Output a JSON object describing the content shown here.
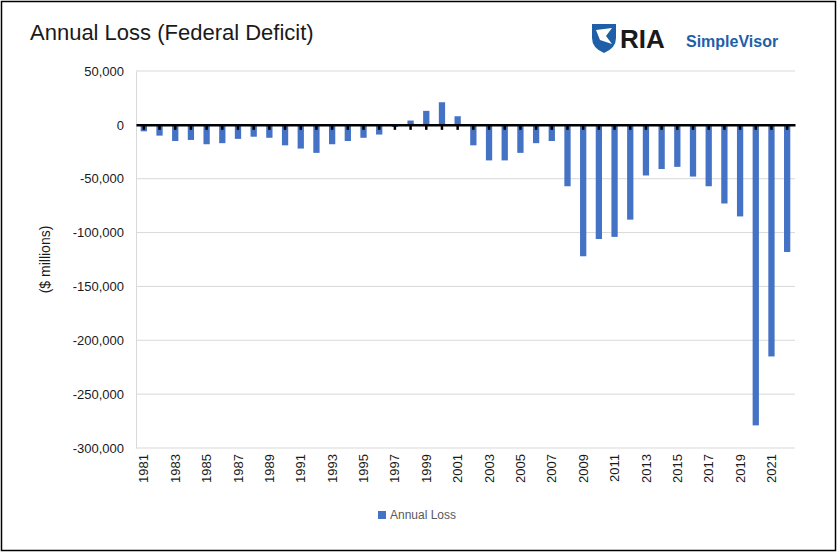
{
  "chart_data": {
    "type": "bar",
    "title": "Annual Loss (Federal Deficit)",
    "y_label": "($ millions)",
    "annotations": [
      "RIA",
      "SimpleVisor"
    ],
    "categories": [
      "1981",
      null,
      "1983",
      null,
      "1985",
      null,
      "1987",
      null,
      "1989",
      null,
      "1991",
      null,
      "1993",
      null,
      "1995",
      null,
      "1997",
      null,
      "1999",
      null,
      "2001",
      null,
      "2003",
      null,
      "2005",
      null,
      "2007",
      null,
      "2009",
      null,
      "2011",
      null,
      "2013",
      null,
      "2015",
      null,
      "2017",
      null,
      "2019",
      null,
      "2021",
      null
    ],
    "series": [
      {
        "name": "Annual Loss",
        "color": "#4472c4",
        "values": [
          -6000,
          -10000,
          -15000,
          -14000,
          -18000,
          -17000,
          -13000,
          -11000,
          -12000,
          -19000,
          -22000,
          -26000,
          -18000,
          -15000,
          -12000,
          -9000,
          -2000,
          4000,
          13000,
          21000,
          8000,
          -19000,
          -33000,
          -33000,
          -26000,
          -17000,
          -15000,
          -57000,
          -122000,
          -106000,
          -104000,
          -88000,
          -47000,
          -41000,
          -39000,
          -48000,
          -57000,
          -73000,
          -85000,
          -279000,
          -215000,
          -118000
        ]
      }
    ],
    "ylim": [
      -300000,
      50000
    ],
    "yticks": [
      {
        "value": 50000,
        "label": "50,000"
      },
      0,
      {
        "value": -50000,
        "label": "-50,000"
      },
      {
        "value": -100000,
        "label": "-100,000"
      },
      {
        "value": -150000,
        "label": "-150,000"
      },
      {
        "value": -200000,
        "label": "-200,000"
      },
      {
        "value": -250000,
        "label": "-250,000"
      },
      {
        "value": -300000,
        "label": "-300,000"
      }
    ],
    "grid": true,
    "legend": "bottom"
  }
}
